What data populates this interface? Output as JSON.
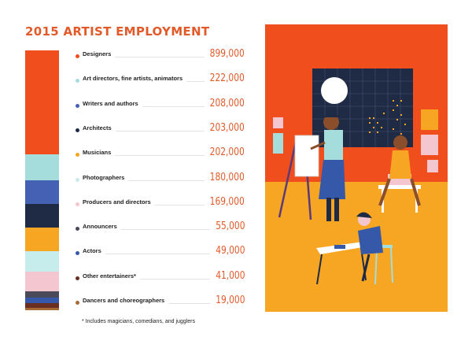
{
  "chart_data": {
    "type": "bar",
    "title": "2015 ARTIST EMPLOYMENT",
    "categories": [
      "Designers",
      "Art directors, fine artists, animators",
      "Writers and authors",
      "Architects",
      "Musicians",
      "Photographers",
      "Producers and directors",
      "Announcers",
      "Actors",
      "Other entertainers*",
      "Dancers and choreographers"
    ],
    "values": [
      899000,
      222000,
      208000,
      203000,
      202000,
      180000,
      169000,
      55000,
      49000,
      41000,
      19000
    ],
    "value_labels": [
      "899,000",
      "222,000",
      "208,000",
      "203,000",
      "202,000",
      "180,000",
      "169,000",
      "55,000",
      "49,000",
      "41,000",
      "19,000"
    ],
    "colors": [
      "#f04e1c",
      "#a5dcdc",
      "#4561b4",
      "#1f2a44",
      "#f6a623",
      "#c7ecec",
      "#f4c6cf",
      "#4a4a5a",
      "#3558a8",
      "#6b2f21",
      "#a66a34"
    ],
    "footnote": "* Includes magicians, comedians, and jugglers"
  },
  "illustration": {
    "icon": "artists-at-work-illustration",
    "colors": {
      "wall": "#f04e1c",
      "floor": "#f6a623",
      "window": "#1f2a44",
      "moon": "#ffffff"
    }
  }
}
